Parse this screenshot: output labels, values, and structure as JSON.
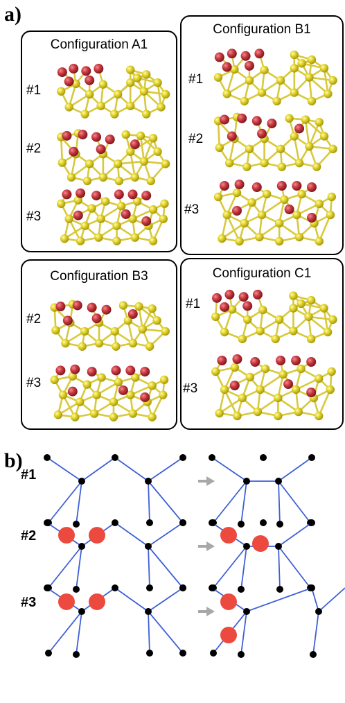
{
  "panel_a": {
    "letter": "a)",
    "boxes": [
      {
        "title": "Configuration A1",
        "rows": [
          "#1",
          "#2",
          "#3"
        ]
      },
      {
        "title": "Configuration B1",
        "rows": [
          "#1",
          "#2",
          "#3"
        ]
      },
      {
        "title": "Configuration B3",
        "rows": [
          "#2",
          "#3"
        ]
      },
      {
        "title": "Configuration C1",
        "rows": [
          "#1",
          "#3"
        ]
      }
    ]
  },
  "panel_b": {
    "letter": "b)",
    "rows": [
      "#1",
      "#2",
      "#3"
    ]
  },
  "colors": {
    "silicon": "#e3d52c",
    "silicon_edge": "#a89a10",
    "bond_yellow": "#d8c93a",
    "oxygen": "#c9373f",
    "node": "#000000",
    "bond_blue": "#3d5fd6",
    "oxygen_flat": "#ec4a3e",
    "arrow": "#a8a8a8"
  }
}
